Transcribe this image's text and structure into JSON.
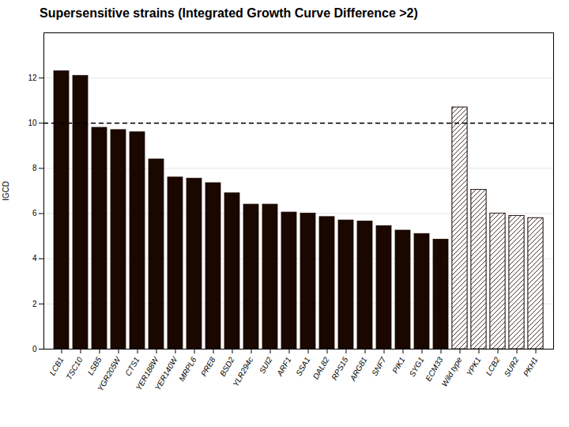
{
  "chart_data": {
    "type": "bar",
    "title": "Supersensitive strains (Integrated Growth Curve Difference >2)",
    "ylabel": "IGCD",
    "categories": [
      "LCB1",
      "TSC10",
      "LSB5",
      "YGR205W",
      "CTS1",
      "YER188W",
      "YER140W",
      "MRPL6",
      "PRE8",
      "BSD2",
      "YLR294c",
      "SUI2",
      "ARF1",
      "SSA1",
      "DAL82",
      "RPS15",
      "ARG81",
      "SNF7",
      "PIK1",
      "SYG1",
      "ECM33",
      "Wild type",
      "YPK1",
      "LCB2",
      "SUR2",
      "PKH1"
    ],
    "values": [
      12.3,
      12.1,
      9.8,
      9.7,
      9.6,
      8.4,
      7.6,
      7.55,
      7.35,
      6.9,
      6.4,
      6.4,
      6.05,
      6.0,
      5.85,
      5.7,
      5.65,
      5.45,
      5.25,
      5.1,
      4.85,
      10.7,
      7.05,
      6.0,
      5.9,
      5.8
    ],
    "color": "#1a0800",
    "colors": [
      "#1a0800",
      "#1a0800",
      "#1a0800",
      "#1a0800",
      "#1a0800",
      "#1a0800",
      "#1a0800",
      "#1a0800",
      "#1a0800",
      "#1a0800",
      "#1a0800",
      "#1a0800",
      "#1a0800",
      "#1a0800",
      "#1a0800",
      "#1a0800",
      "#1a0800",
      "#1a0800",
      "#1a0800",
      "#1a0800",
      "#1a0800",
      "#ffffff",
      "#ffffff",
      "#ffffff",
      "#ffffff",
      "#ffffff"
    ],
    "reference_y": 10,
    "ylim": [
      0,
      14
    ],
    "yticks": [
      0,
      2,
      4,
      6,
      8,
      10,
      12
    ],
    "grid": true
  }
}
